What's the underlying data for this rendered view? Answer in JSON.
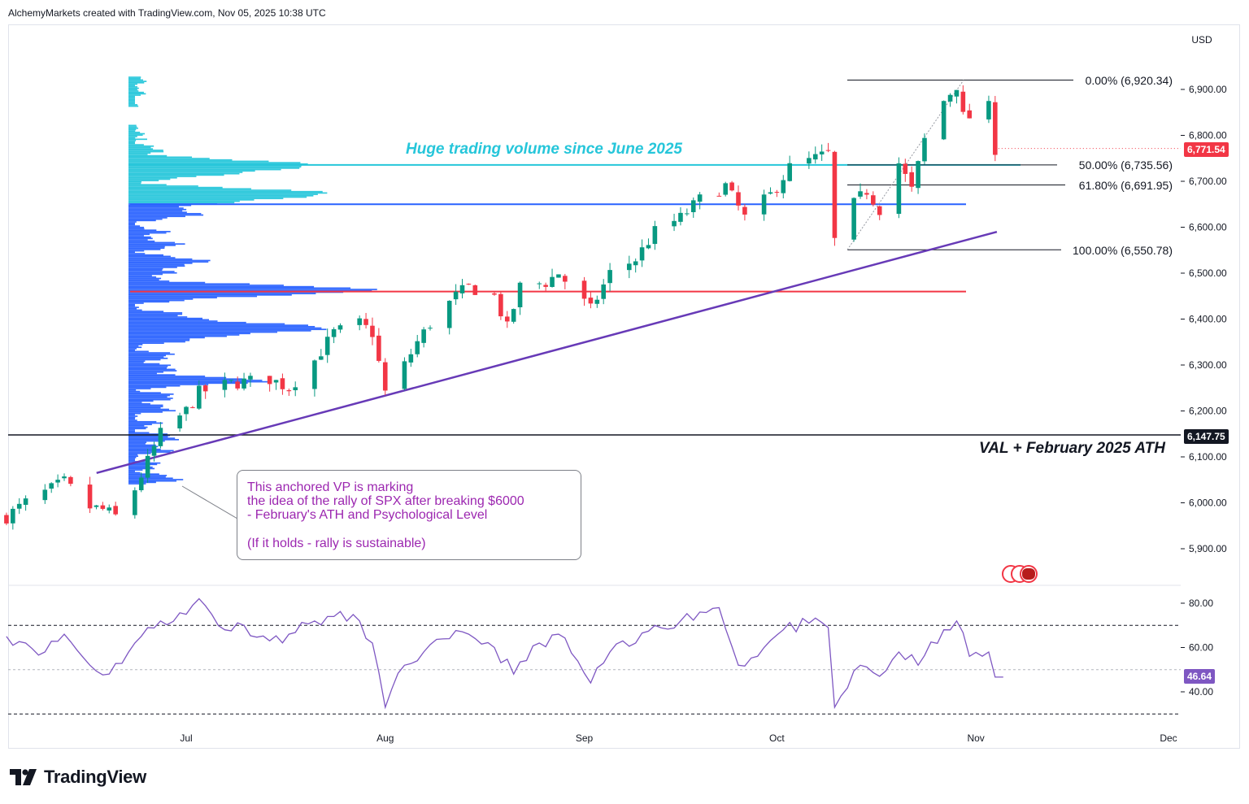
{
  "header": {
    "attribution": "AlchemyMarkets created with TradingView.com, Nov 05, 2025 10:38 UTC"
  },
  "toolbar": {
    "currency": "USD"
  },
  "branding": {
    "name": "TradingView"
  },
  "price_axis": {
    "ticks": [
      "6,900.00",
      "6,800.00",
      "6,700.00",
      "6,600.00",
      "6,500.00",
      "6,400.00",
      "6,300.00",
      "6,200.00",
      "6,100.00",
      "6,000.00",
      "5,900.00"
    ]
  },
  "rsi_axis": {
    "ticks": [
      "80.00",
      "60.00",
      "40.00"
    ]
  },
  "time_axis": {
    "labels": [
      "Jul",
      "Aug",
      "Sep",
      "Oct",
      "Nov",
      "Dec"
    ]
  },
  "badges": {
    "last_price": "6,771.54",
    "val_price": "6,147.75",
    "rsi_value": "46.64"
  },
  "annotations": {
    "volume_label": "Huge trading volume since June 2025",
    "val_label": "VAL + February 2025 ATH",
    "note_lines": [
      "This anchored VP is marking",
      "the idea of the rally of SPX after breaking $6000",
      "- February's ATH and Psychological Level",
      "(If it holds - rally is sustainable)"
    ]
  },
  "fib_levels": [
    {
      "label": "0.00% (6,920.34)",
      "price": 6920.34
    },
    {
      "label": "50.00% (6,735.56)",
      "price": 6735.56
    },
    {
      "label": "61.80% (6,691.95)",
      "price": 6691.95
    },
    {
      "label": "100.00% (6,550.78)",
      "price": 6550.78
    }
  ],
  "colors": {
    "up": "#089981",
    "down": "#f23645",
    "vp_blue": "#2962ff",
    "vp_cyan": "#26c6da",
    "trend": "#673ab7",
    "red_line": "#f23645",
    "rsi": "#7e57c2",
    "note": "#9c27b0"
  },
  "chart_data": [
    {
      "type": "candlestick",
      "title": "",
      "ylabel": "USD",
      "x_range": [
        "2025-06-03",
        "2025-12-01"
      ],
      "ylim": [
        5850,
        6950
      ],
      "horizontal_levels": [
        {
          "price": 6735.56,
          "color": "#26c6da",
          "desc": "Huge trading volume since June 2025"
        },
        {
          "price": 6650,
          "color": "#2962ff"
        },
        {
          "price": 6460,
          "color": "#f23645"
        },
        {
          "price": 6147.75,
          "color": "#131722",
          "desc": "VAL + February 2025 ATH"
        }
      ],
      "trendline": {
        "from": [
          "2025-06-24",
          6065
        ],
        "to": [
          "2025-11-03",
          6590
        ]
      },
      "anchored_volume_profile": {
        "anchor": "2025-06-24",
        "poc_price": 6460
      },
      "close_path": [
        [
          "2025-06-03",
          5970
        ],
        [
          "2025-06-06",
          6000
        ],
        [
          "2025-06-10",
          6030
        ],
        [
          "2025-06-12",
          6045
        ],
        [
          "2025-06-16",
          5990
        ],
        [
          "2025-06-18",
          5985
        ],
        [
          "2025-06-20",
          5970
        ],
        [
          "2025-06-23",
          6030
        ],
        [
          "2025-06-25",
          6090
        ],
        [
          "2025-06-27",
          6150
        ],
        [
          "2025-07-01",
          6200
        ],
        [
          "2025-07-03",
          6240
        ],
        [
          "2025-07-08",
          6260
        ],
        [
          "2025-07-11",
          6265
        ],
        [
          "2025-07-14",
          6270
        ],
        [
          "2025-07-17",
          6250
        ],
        [
          "2025-07-21",
          6310
        ],
        [
          "2025-07-24",
          6370
        ],
        [
          "2025-07-28",
          6390
        ],
        [
          "2025-07-30",
          6370
        ],
        [
          "2025-08-01",
          6240
        ],
        [
          "2025-08-04",
          6300
        ],
        [
          "2025-08-06",
          6350
        ],
        [
          "2025-08-08",
          6390
        ],
        [
          "2025-08-12",
          6450
        ],
        [
          "2025-08-14",
          6470
        ],
        [
          "2025-08-18",
          6450
        ],
        [
          "2025-08-20",
          6380
        ],
        [
          "2025-08-22",
          6470
        ],
        [
          "2025-08-26",
          6480
        ],
        [
          "2025-08-28",
          6500
        ],
        [
          "2025-09-02",
          6420
        ],
        [
          "2025-09-05",
          6500
        ],
        [
          "2025-09-09",
          6530
        ],
        [
          "2025-09-12",
          6590
        ],
        [
          "2025-09-16",
          6620
        ],
        [
          "2025-09-19",
          6660
        ],
        [
          "2025-09-23",
          6690
        ],
        [
          "2025-09-26",
          6620
        ],
        [
          "2025-09-30",
          6670
        ],
        [
          "2025-10-03",
          6730
        ],
        [
          "2025-10-07",
          6750
        ],
        [
          "2025-10-09",
          6760
        ],
        [
          "2025-10-10",
          6570
        ],
        [
          "2025-10-13",
          6650
        ],
        [
          "2025-10-15",
          6680
        ],
        [
          "2025-10-17",
          6640
        ],
        [
          "2025-10-20",
          6740
        ],
        [
          "2025-10-22",
          6680
        ],
        [
          "2025-10-24",
          6790
        ],
        [
          "2025-10-27",
          6875
        ],
        [
          "2025-10-29",
          6910
        ],
        [
          "2025-10-30",
          6840
        ],
        [
          "2025-10-31",
          6840
        ],
        [
          "2025-11-03",
          6860
        ],
        [
          "2025-11-04",
          6771.54
        ]
      ]
    },
    {
      "type": "line",
      "title": "RSI",
      "ylim": [
        30,
        85
      ],
      "reference_lines": [
        70,
        50,
        30
      ],
      "series": [
        {
          "values": [
            [
              "2025-06-03",
              65
            ],
            [
              "2025-06-06",
              62
            ],
            [
              "2025-06-09",
              58
            ],
            [
              "2025-06-12",
              66
            ],
            [
              "2025-06-16",
              52
            ],
            [
              "2025-06-19",
              48
            ],
            [
              "2025-06-23",
              62
            ],
            [
              "2025-06-27",
              72
            ],
            [
              "2025-07-01",
              75
            ],
            [
              "2025-07-03",
              82
            ],
            [
              "2025-07-07",
              68
            ],
            [
              "2025-07-10",
              70
            ],
            [
              "2025-07-14",
              63
            ],
            [
              "2025-07-17",
              66
            ],
            [
              "2025-07-21",
              72
            ],
            [
              "2025-07-24",
              74
            ],
            [
              "2025-07-28",
              72
            ],
            [
              "2025-07-30",
              62
            ],
            [
              "2025-08-01",
              33
            ],
            [
              "2025-08-04",
              52
            ],
            [
              "2025-08-07",
              58
            ],
            [
              "2025-08-11",
              64
            ],
            [
              "2025-08-14",
              66
            ],
            [
              "2025-08-18",
              60
            ],
            [
              "2025-08-21",
              48
            ],
            [
              "2025-08-25",
              62
            ],
            [
              "2025-08-28",
              66
            ],
            [
              "2025-09-02",
              44
            ],
            [
              "2025-09-05",
              58
            ],
            [
              "2025-09-09",
              62
            ],
            [
              "2025-09-12",
              70
            ],
            [
              "2025-09-16",
              72
            ],
            [
              "2025-09-19",
              76
            ],
            [
              "2025-09-22",
              78
            ],
            [
              "2025-09-25",
              52
            ],
            [
              "2025-09-29",
              60
            ],
            [
              "2025-10-02",
              68
            ],
            [
              "2025-10-06",
              71
            ],
            [
              "2025-10-09",
              69
            ],
            [
              "2025-10-10",
              33
            ],
            [
              "2025-10-14",
              52
            ],
            [
              "2025-10-17",
              47
            ],
            [
              "2025-10-20",
              58
            ],
            [
              "2025-10-23",
              52
            ],
            [
              "2025-10-27",
              68
            ],
            [
              "2025-10-29",
              72
            ],
            [
              "2025-10-31",
              56
            ],
            [
              "2025-11-03",
              58
            ],
            [
              "2025-11-04",
              46.64
            ]
          ]
        }
      ]
    }
  ]
}
